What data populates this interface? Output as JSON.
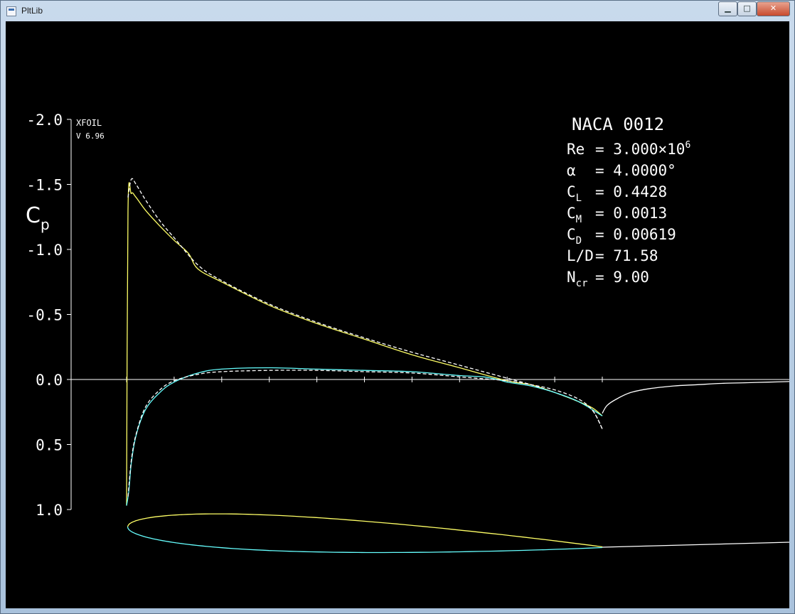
{
  "window": {
    "title": "PltLib",
    "minimize_label": "▁",
    "maximize_label": "□",
    "close_label": "✕"
  },
  "plot": {
    "program": "XFOIL",
    "version": "V 6.96",
    "airfoil": "NACA 0012",
    "params": [
      {
        "name": "Re",
        "sub": "",
        "value": "= 3.000×10",
        "sup": "6"
      },
      {
        "name": "α",
        "sub": "",
        "value": "= 4.0000°",
        "sup": ""
      },
      {
        "name": "C",
        "sub": "L",
        "value": "= 0.4428",
        "sup": ""
      },
      {
        "name": "C",
        "sub": "M",
        "value": "= 0.0013",
        "sup": ""
      },
      {
        "name": "C",
        "sub": "D",
        "value": "= 0.00619",
        "sup": ""
      },
      {
        "name": "L/D",
        "sub": "",
        "value": "= 71.58",
        "sup": ""
      },
      {
        "name": "N",
        "sub": "cr",
        "value": "= 9.00",
        "sup": ""
      }
    ],
    "colors": {
      "background": "#000000",
      "axes": "#ffffff",
      "upper": "#ffff66",
      "lower": "#66ffff",
      "inviscid": "#ffffff",
      "wake": "#ffffff"
    }
  },
  "chart_data": {
    "type": "line",
    "title": "",
    "xlabel": "",
    "ylabel": "Cp",
    "ylabel_sub": "p",
    "ylim": [
      1.0,
      -2.0
    ],
    "y_inverted": true,
    "yticks": [
      "-2.0",
      "-1.5",
      "-1.0",
      "-0.5",
      "0.0",
      "0.5",
      "1.0"
    ],
    "ytick_values": [
      -2.0,
      -1.5,
      -1.0,
      -0.5,
      0.0,
      0.5,
      1.0
    ],
    "xlim": [
      0.0,
      1.4
    ],
    "xticks": [
      0.0,
      0.1,
      0.2,
      0.3,
      0.4,
      0.5,
      0.6,
      0.7,
      0.8,
      0.9,
      1.0
    ],
    "series": [
      {
        "key": "upper",
        "style": "solid",
        "x": [
          0.0,
          0.003,
          0.01,
          0.02,
          0.04,
          0.07,
          0.1,
          0.13,
          0.15,
          0.2,
          0.3,
          0.4,
          0.5,
          0.6,
          0.7,
          0.8,
          0.85,
          0.9,
          0.95,
          0.98,
          1.0
        ],
        "y": [
          0.97,
          -1.3,
          -1.43,
          -1.4,
          -1.3,
          -1.18,
          -1.07,
          -0.97,
          -0.85,
          -0.75,
          -0.57,
          -0.43,
          -0.31,
          -0.19,
          -0.09,
          0.01,
          0.04,
          0.1,
          0.17,
          0.22,
          0.28
        ]
      },
      {
        "key": "upper-inviscid",
        "style": "dashed",
        "x": [
          0.003,
          0.01,
          0.02,
          0.04,
          0.07,
          0.1,
          0.15,
          0.2,
          0.3,
          0.4,
          0.5,
          0.6,
          0.7,
          0.8,
          0.85,
          0.9,
          0.95,
          0.98,
          1.0
        ],
        "y": [
          -1.4,
          -1.54,
          -1.5,
          -1.38,
          -1.22,
          -1.09,
          -0.88,
          -0.76,
          -0.58,
          -0.44,
          -0.32,
          -0.21,
          -0.11,
          -0.01,
          0.04,
          0.1,
          0.17,
          0.24,
          0.38
        ]
      },
      {
        "key": "lower",
        "style": "solid",
        "x": [
          0.0,
          0.005,
          0.01,
          0.02,
          0.04,
          0.07,
          0.1,
          0.15,
          0.2,
          0.3,
          0.4,
          0.5,
          0.6,
          0.7,
          0.75,
          0.78,
          0.8,
          0.85,
          0.9,
          0.95,
          1.0
        ],
        "y": [
          0.97,
          0.85,
          0.64,
          0.43,
          0.23,
          0.1,
          0.02,
          -0.05,
          -0.08,
          -0.09,
          -0.08,
          -0.07,
          -0.06,
          -0.03,
          -0.02,
          -0.0,
          0.02,
          0.05,
          0.1,
          0.17,
          0.28
        ]
      },
      {
        "key": "lower-inviscid",
        "style": "dashed",
        "x": [
          0.003,
          0.01,
          0.02,
          0.04,
          0.07,
          0.1,
          0.15,
          0.2,
          0.3,
          0.4,
          0.5,
          0.6,
          0.7,
          0.8,
          0.85,
          0.9,
          0.95,
          0.98,
          1.0
        ],
        "y": [
          0.9,
          0.62,
          0.42,
          0.21,
          0.08,
          0.01,
          -0.04,
          -0.06,
          -0.07,
          -0.07,
          -0.06,
          -0.05,
          -0.02,
          0.01,
          0.04,
          0.08,
          0.15,
          0.24,
          0.38
        ]
      },
      {
        "key": "wake",
        "style": "solid",
        "x": [
          1.0,
          1.01,
          1.03,
          1.06,
          1.1,
          1.15,
          1.2,
          1.25,
          1.3,
          1.35,
          1.4
        ],
        "y": [
          0.26,
          0.2,
          0.15,
          0.1,
          0.07,
          0.05,
          0.04,
          0.03,
          0.025,
          0.02,
          0.015
        ]
      }
    ],
    "airfoil_outline": {
      "thickness": 0.12,
      "angle_deg": 4.0,
      "wake_end_offset": 0.14
    }
  }
}
